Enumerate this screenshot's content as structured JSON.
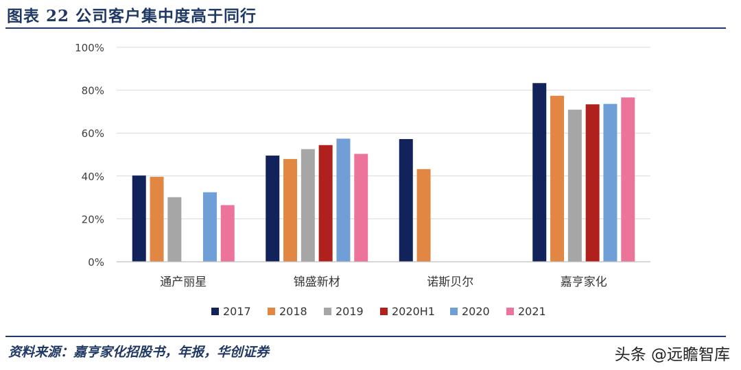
{
  "figure": {
    "title": "图表 22   公司客户集中度高于同行",
    "source": "资料来源：嘉亨家化招股书，年报，华创证券",
    "watermark": "头条 @远瞻智库"
  },
  "chart_data": {
    "type": "bar",
    "title": "",
    "xlabel": "",
    "ylabel": "",
    "ylim": [
      0,
      100
    ],
    "yticks": [
      0,
      20,
      40,
      60,
      80,
      100
    ],
    "ytick_labels": [
      "0%",
      "20%",
      "40%",
      "60%",
      "80%",
      "100%"
    ],
    "grid": true,
    "legend_position": "bottom",
    "categories": [
      "通产丽星",
      "锦盛新材",
      "诺斯贝尔",
      "嘉亨家化"
    ],
    "series": [
      {
        "name": "2017",
        "color": "#12235b",
        "values": [
          40.2,
          49.5,
          57.2,
          83.3
        ]
      },
      {
        "name": "2018",
        "color": "#e28743",
        "values": [
          39.6,
          47.9,
          43.2,
          77.4
        ]
      },
      {
        "name": "2019",
        "color": "#a6a6a6",
        "values": [
          30.1,
          52.5,
          null,
          70.9
        ]
      },
      {
        "name": "2020H1",
        "color": "#b0201c",
        "values": [
          null,
          54.4,
          null,
          73.4
        ]
      },
      {
        "name": "2020",
        "color": "#6f9fd6",
        "values": [
          32.4,
          57.4,
          null,
          73.6
        ]
      },
      {
        "name": "2021",
        "color": "#ec7399",
        "values": [
          26.4,
          50.3,
          null,
          76.6
        ]
      }
    ]
  }
}
